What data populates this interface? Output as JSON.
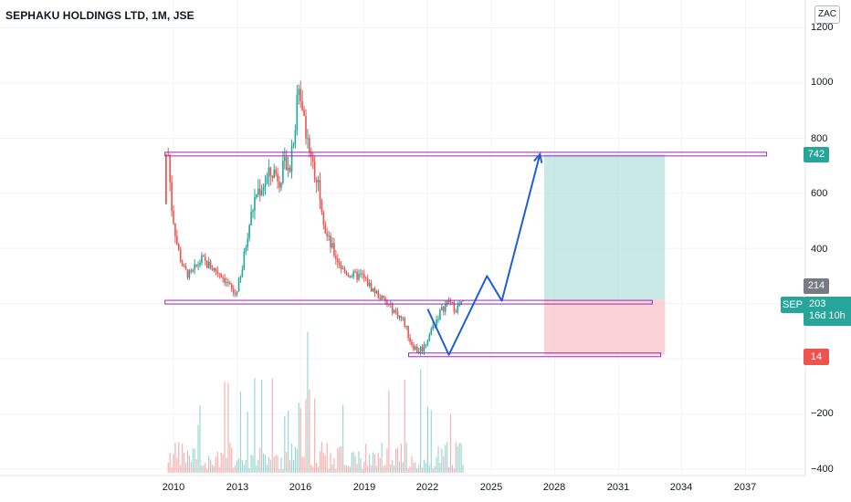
{
  "header": {
    "title": "SEPHAKU HOLDINGS LTD, 1M, JSE",
    "currency_button": "ZAC"
  },
  "price_scale": {
    "ticks": [
      "1200",
      "1000",
      "800",
      "600",
      "400",
      "−200",
      "−400"
    ]
  },
  "time_scale": {
    "ticks": [
      "2010",
      "2013",
      "2016",
      "2019",
      "2022",
      "2025",
      "2028",
      "2031",
      "2034",
      "2037"
    ]
  },
  "tags": {
    "target": "742",
    "entry": "214",
    "stop": "14",
    "symbol": "SEP",
    "last_price": "203",
    "countdown": "16d 10h"
  },
  "colors": {
    "up": "#26a69a",
    "down": "#ef5350",
    "projection": "#1e5fd9",
    "level_lines": "#9c27b0",
    "target_zone": "#b2dfdb",
    "stop_zone": "#f8c8cc",
    "entry_tag": "#787b86"
  },
  "chart_data": {
    "type": "candlestick",
    "interval": "1M",
    "y_range": [
      -420,
      1260
    ],
    "x_range": [
      2007.4,
      2039.5
    ],
    "levels": [
      {
        "type": "horizontal",
        "price": 742,
        "from": 2009.6,
        "to": 2038.0
      },
      {
        "type": "horizontal",
        "price": 205,
        "from": 2009.6,
        "to": 2032.6
      },
      {
        "type": "horizontal",
        "price": 14,
        "from": 2021.1,
        "to": 2033.0
      }
    ],
    "long_position": {
      "start": 2027.5,
      "end": 2033.2,
      "entry": 214,
      "target": 742,
      "stop": 14
    },
    "projection_path": [
      [
        2022.0,
        180
      ],
      [
        2023.0,
        14
      ],
      [
        2024.8,
        300
      ],
      [
        2025.5,
        210
      ],
      [
        2027.3,
        742
      ]
    ],
    "price_path": [
      [
        2009.75,
        740
      ],
      [
        2009.9,
        560
      ],
      [
        2010.2,
        400
      ],
      [
        2010.5,
        320
      ],
      [
        2010.8,
        300
      ],
      [
        2011.3,
        360
      ],
      [
        2011.8,
        330
      ],
      [
        2012.2,
        310
      ],
      [
        2012.5,
        280
      ],
      [
        2012.9,
        230
      ],
      [
        2013.2,
        300
      ],
      [
        2013.5,
        460
      ],
      [
        2013.9,
        600
      ],
      [
        2014.3,
        640
      ],
      [
        2014.7,
        680
      ],
      [
        2015.0,
        660
      ],
      [
        2015.5,
        720
      ],
      [
        2015.8,
        900
      ],
      [
        2016.0,
        980
      ],
      [
        2016.3,
        820
      ],
      [
        2016.6,
        700
      ],
      [
        2016.9,
        620
      ],
      [
        2017.2,
        450
      ],
      [
        2017.6,
        380
      ],
      [
        2018.0,
        320
      ],
      [
        2018.5,
        300
      ],
      [
        2018.9,
        300
      ],
      [
        2019.3,
        260
      ],
      [
        2019.8,
        220
      ],
      [
        2020.2,
        190
      ],
      [
        2020.6,
        160
      ],
      [
        2020.9,
        130
      ],
      [
        2021.2,
        60
      ],
      [
        2021.5,
        30
      ],
      [
        2021.8,
        40
      ],
      [
        2022.2,
        110
      ],
      [
        2022.6,
        170
      ],
      [
        2023.0,
        210
      ],
      [
        2023.3,
        180
      ],
      [
        2023.7,
        205
      ]
    ],
    "volume_note": "volume histogram drawn below price, bars colored by candle direction"
  }
}
